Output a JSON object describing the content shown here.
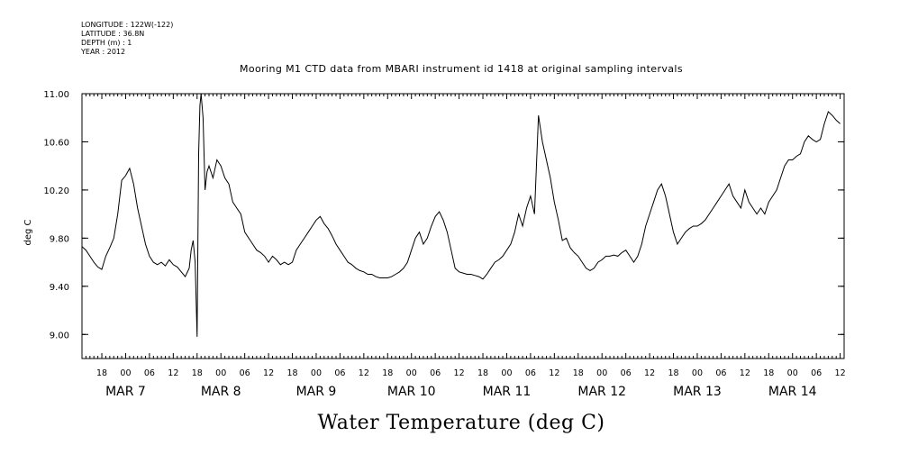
{
  "header": {
    "longitude": "LONGITUDE : 122W(-122)",
    "latitude": "LATITUDE : 36.8N",
    "depth": "DEPTH (m) : 1",
    "year": "YEAR : 2012"
  },
  "chart_data": {
    "type": "line",
    "title": "Mooring M1 CTD data from MBARI instrument id 1418 at original sampling intervals",
    "xlabel": "Water Temperature (deg C)",
    "ylabel": "deg C",
    "ylim": [
      8.8,
      11.0
    ],
    "yticks": [
      "9.00",
      "9.40",
      "9.80",
      "10.20",
      "10.60",
      "11.00"
    ],
    "xlim": [
      "MAR 6 13:00",
      "MAR 14 13:00"
    ],
    "hour_ticks": [
      "18",
      "00",
      "06",
      "12",
      "18",
      "00",
      "06",
      "12",
      "18",
      "00",
      "06",
      "12",
      "18",
      "00",
      "06",
      "12",
      "18",
      "00",
      "06",
      "12",
      "18",
      "00",
      "06",
      "12",
      "18",
      "00",
      "06",
      "12",
      "18",
      "00",
      "06",
      "12"
    ],
    "day_labels": [
      "MAR  7",
      "MAR  8",
      "MAR  9",
      "MAR 10",
      "MAR 11",
      "MAR 12",
      "MAR 13",
      "MAR 14"
    ],
    "grid": false,
    "series": [
      {
        "name": "",
        "x_hours_from_mar6_00": [
          13,
          14,
          15,
          16,
          17,
          18,
          19,
          20,
          21,
          22,
          23,
          24,
          25,
          26,
          27,
          28,
          29,
          30,
          31,
          32,
          33,
          34,
          35,
          36,
          37,
          38,
          39,
          40,
          40.5,
          41,
          41.5,
          42,
          42.2,
          42.4,
          42.7,
          43,
          43.5,
          44,
          44.5,
          45,
          46,
          47,
          48,
          49,
          50,
          51,
          52,
          53,
          54,
          55,
          56,
          57,
          58,
          59,
          60,
          61,
          62,
          63,
          64,
          65,
          66,
          67,
          68,
          69,
          70,
          71,
          72,
          73,
          74,
          75,
          76,
          77,
          78,
          79,
          80,
          81,
          82,
          83,
          84,
          85,
          86,
          87,
          88,
          89,
          90,
          91,
          92,
          93,
          94,
          95,
          96,
          97,
          98,
          99,
          100,
          101,
          102,
          103,
          104,
          105,
          106,
          107,
          108,
          109,
          110,
          111,
          112,
          113,
          114,
          115,
          116,
          117,
          118,
          119,
          120,
          121,
          122,
          123,
          124,
          125,
          126,
          127,
          128,
          129,
          130,
          131,
          132,
          133,
          134,
          135,
          136,
          137,
          138,
          139,
          140,
          141,
          142,
          143,
          144,
          145,
          146,
          147,
          148,
          149,
          150,
          151,
          152,
          153,
          154,
          155,
          156,
          157,
          158,
          159,
          160,
          161,
          162,
          163,
          164,
          165,
          166,
          167,
          168,
          169,
          170,
          171,
          172,
          173,
          174,
          175,
          176,
          177,
          178,
          179,
          180,
          181,
          182,
          183,
          184,
          185,
          186,
          187,
          188,
          189,
          190,
          191,
          192,
          193,
          194,
          195,
          196,
          197,
          198,
          199,
          200,
          201,
          202,
          203,
          204,
          205,
          206,
          207,
          208,
          209
        ],
        "values": [
          9.73,
          9.7,
          9.65,
          9.6,
          9.56,
          9.54,
          9.65,
          9.72,
          9.8,
          10.0,
          10.28,
          10.32,
          10.38,
          10.25,
          10.05,
          9.9,
          9.75,
          9.65,
          9.6,
          9.58,
          9.6,
          9.57,
          9.62,
          9.58,
          9.56,
          9.52,
          9.48,
          9.55,
          9.7,
          9.78,
          9.6,
          8.98,
          9.8,
          10.5,
          10.9,
          11.0,
          10.8,
          10.2,
          10.35,
          10.4,
          10.3,
          10.45,
          10.4,
          10.3,
          10.25,
          10.1,
          10.05,
          10.0,
          9.85,
          9.8,
          9.75,
          9.7,
          9.68,
          9.65,
          9.6,
          9.65,
          9.62,
          9.58,
          9.6,
          9.58,
          9.6,
          9.7,
          9.75,
          9.8,
          9.85,
          9.9,
          9.95,
          9.98,
          9.92,
          9.88,
          9.82,
          9.75,
          9.7,
          9.65,
          9.6,
          9.58,
          9.55,
          9.53,
          9.52,
          9.5,
          9.5,
          9.48,
          9.47,
          9.47,
          9.47,
          9.48,
          9.5,
          9.52,
          9.55,
          9.6,
          9.7,
          9.8,
          9.85,
          9.75,
          9.8,
          9.9,
          9.98,
          10.02,
          9.95,
          9.85,
          9.7,
          9.55,
          9.52,
          9.51,
          9.5,
          9.5,
          9.49,
          9.48,
          9.46,
          9.5,
          9.55,
          9.6,
          9.62,
          9.65,
          9.7,
          9.75,
          9.85,
          10.0,
          9.9,
          10.05,
          10.15,
          10.0,
          10.82,
          10.6,
          10.45,
          10.3,
          10.1,
          9.95,
          9.78,
          9.8,
          9.72,
          9.68,
          9.65,
          9.6,
          9.55,
          9.53,
          9.55,
          9.6,
          9.62,
          9.65,
          9.65,
          9.66,
          9.65,
          9.68,
          9.7,
          9.65,
          9.6,
          9.65,
          9.75,
          9.9,
          10.0,
          10.1,
          10.2,
          10.25,
          10.15,
          10.0,
          9.85,
          9.75,
          9.8,
          9.85,
          9.88,
          9.9,
          9.9,
          9.92,
          9.95,
          10.0,
          10.05,
          10.1,
          10.15,
          10.2,
          10.25,
          10.15,
          10.1,
          10.05,
          10.2,
          10.1,
          10.05,
          10.0,
          10.05,
          10.0,
          10.1,
          10.15,
          10.2,
          10.3,
          10.4,
          10.45,
          10.45,
          10.48,
          10.5,
          10.6,
          10.65,
          10.62,
          10.6,
          10.62,
          10.75,
          10.85,
          10.82,
          10.78,
          10.75
        ]
      }
    ]
  }
}
